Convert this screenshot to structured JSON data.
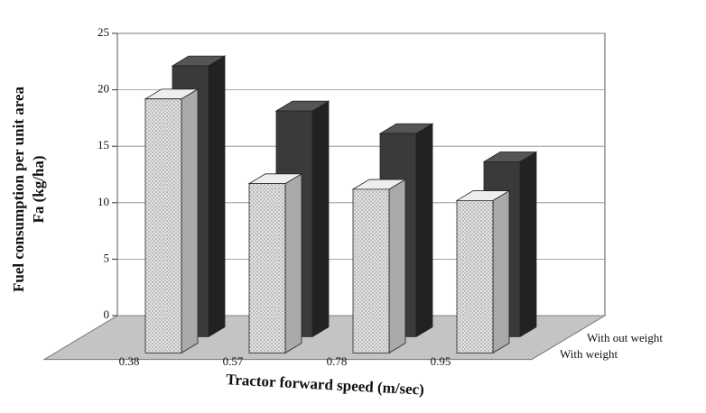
{
  "chart_data": {
    "type": "bar3d",
    "ylabel": [
      "Fuel consumption per unit area",
      "Fa (kg/ha)"
    ],
    "xlabel": "Tractor forward speed (m/sec)",
    "categories": [
      "0.38",
      "0.57",
      "0.78",
      "0.95"
    ],
    "series": [
      {
        "name": "With weight",
        "color": "#d6d6d6",
        "values": [
          22.5,
          15,
          14.5,
          13.5
        ]
      },
      {
        "name": "With out weight",
        "color": "#3a3a3a",
        "values": [
          24,
          20,
          18,
          15.5
        ]
      }
    ],
    "ylim": [
      0,
      25
    ],
    "yticks": [
      0,
      5,
      10,
      15,
      20,
      25
    ],
    "grid": true
  }
}
